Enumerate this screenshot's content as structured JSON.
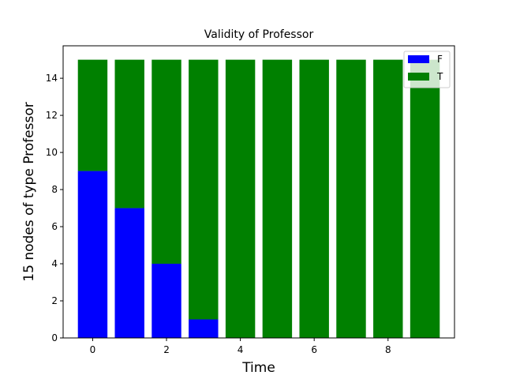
{
  "chart_data": {
    "type": "bar",
    "stacked": true,
    "title": "Validity of Professor",
    "xlabel": "Time",
    "ylabel": "15 nodes  of type Professor",
    "x": [
      0,
      1,
      2,
      3,
      4,
      5,
      6,
      7,
      8,
      9
    ],
    "series": [
      {
        "name": "F",
        "color": "#0000ff",
        "values": [
          9,
          7,
          4,
          1,
          0,
          0,
          0,
          0,
          0,
          0
        ]
      },
      {
        "name": "T",
        "color": "#008000",
        "values": [
          6,
          8,
          11,
          14,
          15,
          15,
          15,
          15,
          15,
          15
        ]
      }
    ],
    "xlim": [
      -0.8,
      9.8
    ],
    "ylim": [
      0,
      15.75
    ],
    "xticks": [
      0,
      2,
      4,
      6,
      8
    ],
    "yticks": [
      0,
      2,
      4,
      6,
      8,
      10,
      12,
      14
    ],
    "grid": false,
    "legend_position": "top-right"
  }
}
